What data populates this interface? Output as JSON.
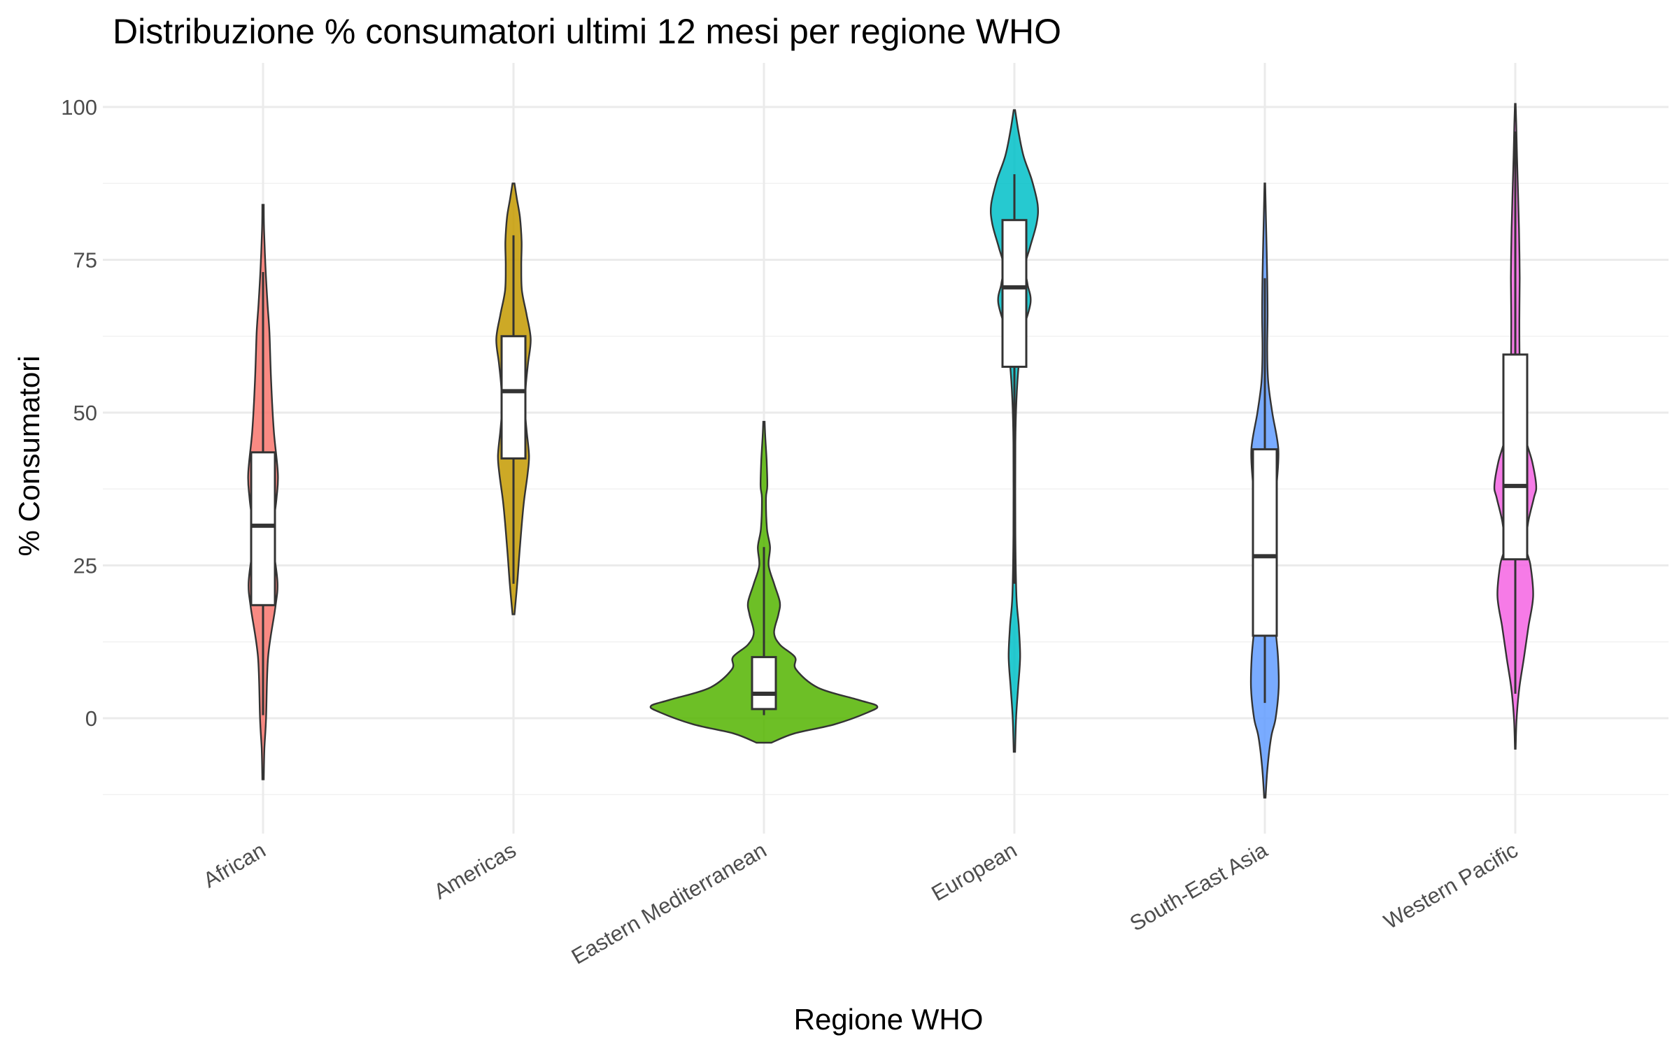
{
  "chart_data": {
    "type": "violin",
    "title": "Distribuzione % consumatori ultimi 12 mesi per regione WHO",
    "xlabel": "Regione WHO",
    "ylabel": "% Consumatori",
    "ylim": [
      -17.5,
      107
    ],
    "yticks": [
      0,
      25,
      50,
      75,
      100
    ],
    "grid": true,
    "legend": "none",
    "categories": [
      "African",
      "Americas",
      "Eastern Mediterranean",
      "European",
      "South-East Asia",
      "Western Pacific"
    ],
    "series": [
      {
        "category": "African",
        "color": "#F8766D",
        "box": {
          "min": 0.5,
          "q1": 18.5,
          "median": 31.5,
          "q3": 43.5,
          "max": 73
        },
        "violin": {
          "min": -10,
          "max": 84,
          "profile": [
            [
              -10,
              0.2
            ],
            [
              -5,
              0.4
            ],
            [
              0,
              0.9
            ],
            [
              10,
              1.5
            ],
            [
              18,
              3.6
            ],
            [
              22,
              4.3
            ],
            [
              27,
              3.3
            ],
            [
              31,
              3.0
            ],
            [
              36,
              4.0
            ],
            [
              40,
              4.4
            ],
            [
              47,
              3.2
            ],
            [
              55,
              2.4
            ],
            [
              63,
              1.9
            ],
            [
              68,
              1.3
            ],
            [
              74,
              0.7
            ],
            [
              80,
              0.3
            ],
            [
              84,
              0.2
            ]
          ]
        }
      },
      {
        "category": "Americas",
        "color": "#C49A00",
        "box": {
          "min": 22,
          "q1": 42.5,
          "median": 53.5,
          "q3": 62.5,
          "max": 79
        },
        "violin": {
          "min": 17,
          "max": 87.5,
          "profile": [
            [
              17,
              0.3
            ],
            [
              22,
              1.1
            ],
            [
              28,
              1.9
            ],
            [
              35,
              3.0
            ],
            [
              40,
              4.2
            ],
            [
              43,
              4.6
            ],
            [
              47,
              3.9
            ],
            [
              50,
              3.5
            ],
            [
              54,
              3.6
            ],
            [
              58,
              4.3
            ],
            [
              62,
              5.1
            ],
            [
              66,
              3.9
            ],
            [
              70,
              2.5
            ],
            [
              74,
              2.3
            ],
            [
              78,
              2.4
            ],
            [
              82,
              1.9
            ],
            [
              85,
              1.0
            ],
            [
              87.5,
              0.3
            ]
          ]
        }
      },
      {
        "category": "Eastern Mediterranean",
        "color": "#53B400",
        "box": {
          "min": 0.5,
          "q1": 1.5,
          "median": 4,
          "q3": 10,
          "max": 28
        },
        "violin": {
          "min": -4,
          "max": 48.5,
          "profile": [
            [
              -4,
              2.2
            ],
            [
              -2.5,
              9.0
            ],
            [
              -1,
              21
            ],
            [
              1,
              31
            ],
            [
              2,
              33.5
            ],
            [
              3,
              28
            ],
            [
              5,
              16
            ],
            [
              8,
              9.5
            ],
            [
              10,
              9.2
            ],
            [
              12,
              4.8
            ],
            [
              14,
              3.0
            ],
            [
              17,
              4.3
            ],
            [
              19,
              4.7
            ],
            [
              22,
              3.0
            ],
            [
              25,
              1.4
            ],
            [
              28,
              1.8
            ],
            [
              31,
              0.9
            ],
            [
              36,
              0.6
            ],
            [
              38,
              1.0
            ],
            [
              42,
              0.8
            ],
            [
              46,
              0.4
            ],
            [
              48.5,
              0.2
            ]
          ]
        }
      },
      {
        "category": "European",
        "color": "#00C0C8",
        "box": {
          "min": 22,
          "q1": 57.5,
          "median": 70.5,
          "q3": 81.5,
          "max": 89
        },
        "violin": {
          "min": -5.5,
          "max": 99.5,
          "profile": [
            [
              -5.5,
              0.2
            ],
            [
              0,
              0.5
            ],
            [
              5,
              1.1
            ],
            [
              10,
              1.7
            ],
            [
              15,
              1.3
            ],
            [
              20,
              0.6
            ],
            [
              30,
              0.3
            ],
            [
              45,
              0.3
            ],
            [
              52,
              0.6
            ],
            [
              58,
              1.3
            ],
            [
              63,
              2.4
            ],
            [
              68,
              4.8
            ],
            [
              71,
              3.9
            ],
            [
              74,
              3.2
            ],
            [
              77,
              4.6
            ],
            [
              81,
              6.6
            ],
            [
              84,
              6.9
            ],
            [
              88,
              5.2
            ],
            [
              92,
              2.7
            ],
            [
              96,
              1.2
            ],
            [
              99.5,
              0.2
            ]
          ]
        }
      },
      {
        "category": "South-East Asia",
        "color": "#619CFF",
        "box": {
          "min": 2.5,
          "q1": 13.5,
          "median": 26.5,
          "q3": 44,
          "max": 72
        },
        "violin": {
          "min": -13,
          "max": 87.5,
          "profile": [
            [
              -13,
              0.2
            ],
            [
              -8,
              0.8
            ],
            [
              -3,
              1.9
            ],
            [
              0,
              3.2
            ],
            [
              5,
              4.1
            ],
            [
              10,
              3.9
            ],
            [
              15,
              3.1
            ],
            [
              20,
              2.4
            ],
            [
              26,
              2.7
            ],
            [
              32,
              3.0
            ],
            [
              38,
              3.5
            ],
            [
              44,
              4.0
            ],
            [
              50,
              2.2
            ],
            [
              55,
              1.0
            ],
            [
              60,
              0.7
            ],
            [
              66,
              0.8
            ],
            [
              72,
              0.7
            ],
            [
              80,
              0.4
            ],
            [
              87.5,
              0.1
            ]
          ]
        }
      },
      {
        "category": "Western Pacific",
        "color": "#F564E3",
        "box": {
          "min": 4,
          "q1": 26,
          "median": 38,
          "q3": 59.5,
          "max": 96
        },
        "violin": {
          "min": -5,
          "max": 100.5,
          "profile": [
            [
              -5,
              0.1
            ],
            [
              0,
              0.4
            ],
            [
              5,
              1.2
            ],
            [
              10,
              2.6
            ],
            [
              15,
              3.9
            ],
            [
              20,
              5.3
            ],
            [
              25,
              4.5
            ],
            [
              28,
              3.2
            ],
            [
              32,
              3.8
            ],
            [
              36,
              5.5
            ],
            [
              38,
              6.2
            ],
            [
              42,
              5.0
            ],
            [
              46,
              3.0
            ],
            [
              52,
              1.8
            ],
            [
              58,
              1.3
            ],
            [
              65,
              1.2
            ],
            [
              72,
              1.3
            ],
            [
              80,
              1.1
            ],
            [
              86,
              0.8
            ],
            [
              92,
              0.5
            ],
            [
              97,
              0.3
            ],
            [
              100.5,
              0.1
            ]
          ]
        }
      }
    ]
  }
}
